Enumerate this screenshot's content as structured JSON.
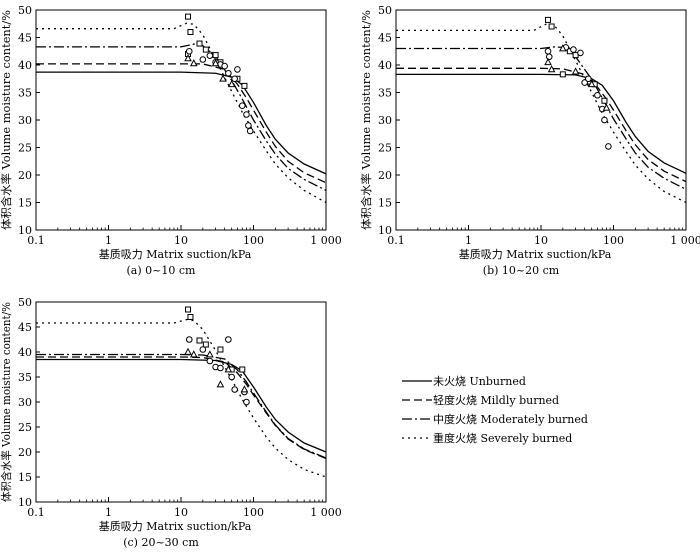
{
  "figure": {
    "legend": [
      {
        "name": "Unburned",
        "label": "未火烧 Unburned",
        "dash": ""
      },
      {
        "name": "Mildly burned",
        "label": "轻度火烧 Mildly burned",
        "dash": "8,4"
      },
      {
        "name": "Moderately burned",
        "label": "中度火烧 Moderately burned",
        "dash": "10,3,2,3"
      },
      {
        "name": "Severely burned",
        "label": "重度火烧 Severely burned",
        "dash": "2,4"
      }
    ]
  },
  "chart_data": [
    {
      "type": "line",
      "panel": "a",
      "caption": "(a) 0~10 cm",
      "xlabel": "基质吸力 Matrix suction/kPa",
      "ylabel": "体积含水率 Volume moisture content/%",
      "xscale": "log",
      "xlim": [
        0.1,
        1000
      ],
      "ylim": [
        10,
        50
      ],
      "xticks": [
        0.1,
        1,
        10,
        100,
        1000
      ],
      "xticklabels": [
        "0.1",
        "1",
        "10",
        "100",
        "1 000"
      ],
      "yticks": [
        10,
        15,
        20,
        25,
        30,
        35,
        40,
        45,
        50
      ],
      "series": [
        {
          "name": "Unburned",
          "x": [
            0.1,
            1,
            10,
            30,
            50,
            70,
            100,
            150,
            200,
            300,
            500,
            1000
          ],
          "y": [
            38.7,
            38.7,
            38.7,
            38.5,
            37.8,
            36.4,
            33.2,
            29.0,
            26.5,
            24.0,
            22.0,
            20.2
          ]
        },
        {
          "name": "Mildly burned",
          "x": [
            0.1,
            1,
            10,
            20,
            40,
            60,
            80,
            100,
            150,
            200,
            300,
            500,
            1000
          ],
          "y": [
            40.2,
            40.2,
            40.2,
            40.2,
            39.2,
            36.5,
            34.0,
            31.8,
            27.8,
            25.2,
            22.5,
            20.4,
            18.6
          ]
        },
        {
          "name": "Moderately burned",
          "x": [
            0.1,
            1,
            10,
            15,
            20,
            30,
            50,
            70,
            100,
            150,
            200,
            300,
            500,
            1000
          ],
          "y": [
            43.3,
            43.3,
            43.3,
            43.8,
            43.5,
            41.6,
            37.2,
            33.8,
            30.0,
            26.2,
            23.8,
            21.2,
            19.2,
            17.2
          ]
        },
        {
          "name": "Severely burned",
          "x": [
            0.1,
            1,
            8,
            12,
            15,
            20,
            30,
            50,
            70,
            100,
            150,
            200,
            300,
            500,
            1000
          ],
          "y": [
            46.6,
            46.6,
            46.6,
            47.6,
            47.4,
            45.5,
            41.0,
            35.2,
            31.4,
            28.0,
            24.4,
            22.0,
            19.5,
            17.2,
            15.0
          ]
        }
      ],
      "points": [
        {
          "group": "Severely burned",
          "marker": "square",
          "x": [
            12.5,
            13.5,
            18,
            22,
            12.5,
            30,
            35,
            60,
            75
          ],
          "y": [
            48.8,
            46.0,
            43.9,
            42.8,
            42.0,
            41.8,
            40.5,
            37.5,
            36.2
          ]
        },
        {
          "group": "Moderately burned",
          "marker": "circle",
          "x": [
            13,
            20,
            25,
            30,
            35,
            40,
            45,
            55,
            60,
            70,
            80,
            85,
            90
          ],
          "y": [
            42.5,
            41.0,
            41.7,
            40.5,
            40.1,
            39.8,
            38.5,
            37.5,
            39.2,
            32.6,
            31.0,
            29.0,
            28.0
          ]
        },
        {
          "group": "Mildly burned",
          "marker": "triangle",
          "x": [
            12.5,
            15,
            30,
            38,
            50
          ],
          "y": [
            41.2,
            40.3,
            40.3,
            37.5,
            36.5
          ]
        }
      ]
    },
    {
      "type": "line",
      "panel": "b",
      "caption": "(b) 10~20 cm",
      "xlabel": "基质吸力 Matrix suction/kPa",
      "ylabel": "体积含水率 Volume moisture content/%",
      "xscale": "log",
      "xlim": [
        0.1,
        1000
      ],
      "ylim": [
        10,
        50
      ],
      "xticks": [
        0.1,
        1,
        10,
        100,
        1000
      ],
      "xticklabels": [
        "0.1",
        "1",
        "10",
        "100",
        "1 000"
      ],
      "yticks": [
        10,
        15,
        20,
        25,
        30,
        35,
        40,
        45,
        50
      ],
      "series": [
        {
          "name": "Unburned",
          "x": [
            0.1,
            1,
            10,
            30,
            50,
            70,
            100,
            150,
            200,
            300,
            500,
            1000
          ],
          "y": [
            38.3,
            38.3,
            38.3,
            38.2,
            37.5,
            36.3,
            33.5,
            29.5,
            27.0,
            24.3,
            22.2,
            20.3
          ]
        },
        {
          "name": "Mildly burned",
          "x": [
            0.1,
            1,
            10,
            20,
            40,
            60,
            80,
            100,
            150,
            200,
            300,
            500,
            1000
          ],
          "y": [
            39.4,
            39.4,
            39.4,
            39.3,
            38.3,
            36.0,
            33.8,
            31.8,
            28.0,
            25.5,
            22.8,
            20.7,
            18.8
          ]
        },
        {
          "name": "Moderately burned",
          "x": [
            0.1,
            1,
            10,
            15,
            20,
            30,
            50,
            70,
            100,
            150,
            200,
            300,
            500,
            1000
          ],
          "y": [
            43.0,
            43.0,
            43.0,
            43.3,
            43.2,
            41.5,
            37.4,
            34.0,
            30.2,
            26.5,
            24.0,
            21.4,
            19.4,
            17.4
          ]
        },
        {
          "name": "Severely burned",
          "x": [
            0.1,
            1,
            8,
            12,
            15,
            20,
            30,
            50,
            70,
            100,
            150,
            200,
            300,
            500,
            1000
          ],
          "y": [
            46.3,
            46.3,
            46.3,
            47.5,
            47.3,
            45.3,
            40.8,
            35.0,
            31.2,
            27.8,
            24.2,
            21.8,
            19.3,
            17.0,
            15.0
          ]
        }
      ],
      "points": [
        {
          "group": "Severely burned",
          "marker": "square",
          "x": [
            12.5,
            14,
            25,
            30,
            20,
            45,
            55,
            75
          ],
          "y": [
            48.2,
            47.0,
            42.5,
            41.8,
            38.3,
            37.0,
            36.5,
            33.5
          ]
        },
        {
          "group": "Moderately burned",
          "marker": "circle",
          "x": [
            12.5,
            13,
            22,
            28,
            35,
            40,
            45,
            60,
            70,
            75,
            85
          ],
          "y": [
            42.5,
            41.5,
            43.2,
            42.8,
            42.2,
            36.8,
            37.5,
            34.5,
            32.0,
            30.0,
            25.2
          ]
        },
        {
          "group": "Mildly burned",
          "marker": "triangle",
          "x": [
            12.5,
            14,
            20,
            30,
            50,
            80
          ],
          "y": [
            40.5,
            39.2,
            43.0,
            38.8,
            36.5,
            32.2
          ]
        }
      ]
    },
    {
      "type": "line",
      "panel": "c",
      "caption": "(c) 20~30 cm",
      "xlabel": "基质吸力 Matrix suction/kPa",
      "ylabel": "体积含水率 Volume moisture content/%",
      "xscale": "log",
      "xlim": [
        0.1,
        1000
      ],
      "ylim": [
        10,
        50
      ],
      "xticks": [
        0.1,
        1,
        10,
        100,
        1000
      ],
      "xticklabels": [
        "0.1",
        "1",
        "10",
        "100",
        "1 000"
      ],
      "yticks": [
        10,
        15,
        20,
        25,
        30,
        35,
        40,
        45,
        50
      ],
      "series": [
        {
          "name": "Unburned",
          "x": [
            0.1,
            1,
            10,
            30,
            50,
            70,
            100,
            150,
            200,
            300,
            500,
            1000
          ],
          "y": [
            38.5,
            38.5,
            38.5,
            38.3,
            37.5,
            36.2,
            33.0,
            29.0,
            26.5,
            24.0,
            21.8,
            20.0
          ]
        },
        {
          "name": "Mildly burned",
          "x": [
            0.1,
            1,
            10,
            20,
            40,
            60,
            80,
            100,
            150,
            200,
            300,
            500,
            1000
          ],
          "y": [
            39.0,
            39.0,
            39.0,
            38.9,
            38.0,
            35.8,
            33.5,
            31.4,
            27.8,
            25.3,
            22.6,
            20.5,
            18.7
          ]
        },
        {
          "name": "Moderately burned",
          "x": [
            0.1,
            1,
            10,
            20,
            40,
            60,
            80,
            100,
            150,
            200,
            300,
            500,
            1000
          ],
          "y": [
            39.5,
            39.5,
            39.5,
            39.4,
            38.6,
            36.4,
            34.0,
            31.8,
            28.0,
            25.4,
            22.7,
            20.6,
            18.8
          ]
        },
        {
          "name": "Severely burned",
          "x": [
            0.1,
            1,
            8,
            12,
            15,
            20,
            30,
            50,
            70,
            100,
            150,
            200,
            300,
            500,
            1000
          ],
          "y": [
            45.8,
            45.8,
            45.8,
            46.5,
            46.3,
            44.5,
            40.3,
            34.5,
            30.5,
            26.8,
            23.0,
            20.8,
            18.5,
            16.5,
            15.0
          ]
        }
      ],
      "points": [
        {
          "group": "Severely burned",
          "marker": "square",
          "x": [
            12.5,
            13.5,
            18,
            22,
            35,
            50,
            70
          ],
          "y": [
            48.5,
            47.0,
            42.3,
            41.5,
            40.5,
            36.5,
            36.5
          ]
        },
        {
          "group": "Moderately burned",
          "marker": "circle",
          "x": [
            13,
            20,
            25,
            30,
            35,
            45,
            50,
            55,
            75,
            80
          ],
          "y": [
            42.5,
            40.5,
            38.2,
            37.0,
            36.8,
            42.5,
            35.0,
            32.5,
            32.0,
            30.0
          ]
        },
        {
          "group": "Mildly burned",
          "marker": "triangle",
          "x": [
            12.5,
            15,
            25,
            35,
            45,
            75
          ],
          "y": [
            40.0,
            39.5,
            39.5,
            33.5,
            36.5,
            32.5
          ]
        }
      ]
    }
  ]
}
